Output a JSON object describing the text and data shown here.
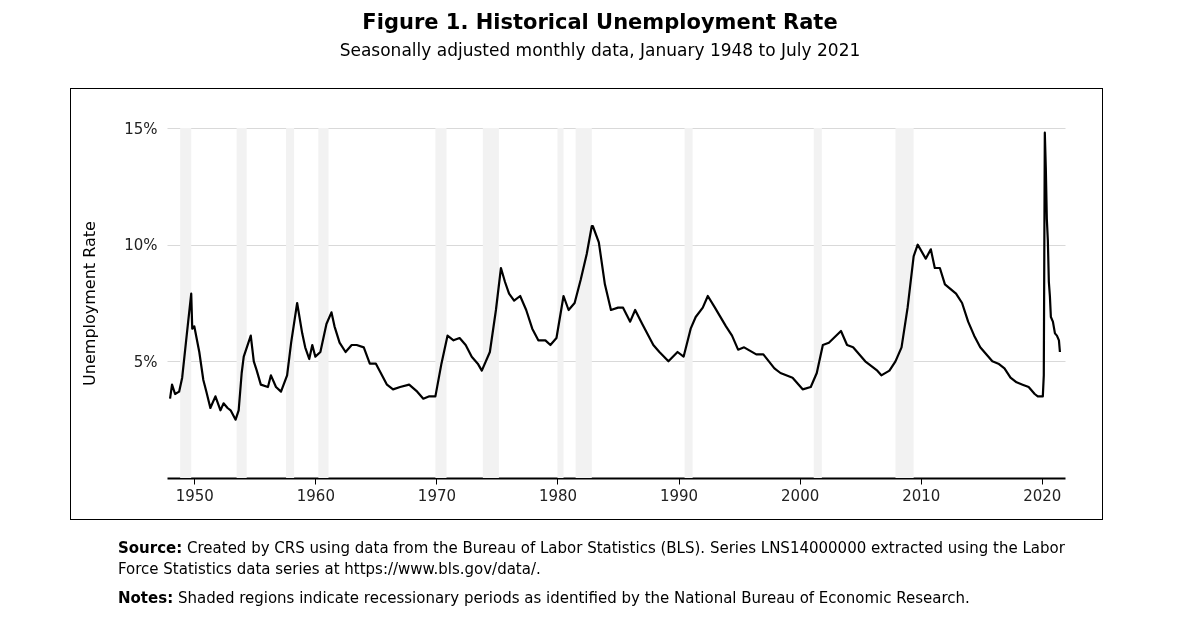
{
  "chart_data": {
    "type": "line",
    "title": "Figure 1. Historical Unemployment Rate",
    "subtitle": "Seasonally adjusted monthly data, January 1948 to July 2021",
    "ylabel": "Unemployment Rate",
    "x": [
      "1948-01",
      "1948-03",
      "1948-06",
      "1948-10",
      "1949-01",
      "1949-05",
      "1949-07",
      "1949-10",
      "1949-11",
      "1950-01",
      "1950-06",
      "1950-10",
      "1951-01",
      "1951-05",
      "1951-10",
      "1952-03",
      "1952-06",
      "1952-10",
      "1953-01",
      "1953-06",
      "1953-09",
      "1953-12",
      "1954-02",
      "1954-09",
      "1954-12",
      "1955-03",
      "1955-07",
      "1956-02",
      "1956-05",
      "1956-10",
      "1957-03",
      "1957-09",
      "1958-01",
      "1958-07",
      "1958-12",
      "1959-03",
      "1959-07",
      "1959-10",
      "1960-01",
      "1960-06",
      "1960-12",
      "1961-05",
      "1961-08",
      "1962-01",
      "1962-07",
      "1963-01",
      "1963-06",
      "1964-01",
      "1964-07",
      "1965-01",
      "1965-12",
      "1966-06",
      "1967-01",
      "1967-10",
      "1968-06",
      "1968-12",
      "1969-06",
      "1969-12",
      "1970-06",
      "1970-12",
      "1971-06",
      "1971-12",
      "1972-06",
      "1972-12",
      "1973-06",
      "1973-10",
      "1974-06",
      "1974-12",
      "1975-05",
      "1975-09",
      "1976-01",
      "1976-06",
      "1976-12",
      "1977-06",
      "1977-12",
      "1978-06",
      "1979-01",
      "1979-06",
      "1979-12",
      "1980-07",
      "1980-12",
      "1981-06",
      "1981-12",
      "1982-06",
      "1982-11",
      "1982-12",
      "1983-06",
      "1983-12",
      "1984-06",
      "1985-01",
      "1985-06",
      "1986-01",
      "1986-06",
      "1987-01",
      "1987-12",
      "1988-06",
      "1989-03",
      "1989-12",
      "1990-06",
      "1991-01",
      "1991-06",
      "1992-01",
      "1992-06",
      "1993-01",
      "1993-12",
      "1994-06",
      "1994-12",
      "1995-06",
      "1996-06",
      "1997-01",
      "1997-12",
      "1998-06",
      "1999-06",
      "2000-04",
      "2000-12",
      "2001-06",
      "2001-12",
      "2002-06",
      "2003-06",
      "2003-12",
      "2004-06",
      "2005-06",
      "2006-06",
      "2006-10",
      "2007-06",
      "2007-12",
      "2008-06",
      "2008-12",
      "2009-06",
      "2009-10",
      "2010-06",
      "2010-11",
      "2011-03",
      "2011-08",
      "2012-01",
      "2012-12",
      "2013-06",
      "2013-12",
      "2014-06",
      "2014-12",
      "2015-06",
      "2015-12",
      "2016-06",
      "2016-12",
      "2017-06",
      "2017-12",
      "2018-06",
      "2018-12",
      "2019-06",
      "2019-09",
      "2020-01",
      "2020-02",
      "2020-03",
      "2020-04",
      "2020-05",
      "2020-06",
      "2020-07",
      "2020-08",
      "2020-09",
      "2020-10",
      "2020-12",
      "2021-02",
      "2021-04",
      "2021-06",
      "2021-07"
    ],
    "series": [
      {
        "color": "#000000",
        "values": [
          3.4,
          4.0,
          3.6,
          3.7,
          4.3,
          5.9,
          6.7,
          7.9,
          6.4,
          6.5,
          5.4,
          4.2,
          3.7,
          3.0,
          3.5,
          2.9,
          3.2,
          3.0,
          2.9,
          2.5,
          2.9,
          4.5,
          5.2,
          6.1,
          5.0,
          4.6,
          4.0,
          3.9,
          4.4,
          3.9,
          3.7,
          4.4,
          5.8,
          7.5,
          6.2,
          5.6,
          5.1,
          5.7,
          5.2,
          5.4,
          6.6,
          7.1,
          6.5,
          5.8,
          5.4,
          5.7,
          5.7,
          5.6,
          4.9,
          4.9,
          4.0,
          3.8,
          3.9,
          4.0,
          3.7,
          3.4,
          3.5,
          3.5,
          4.9,
          6.1,
          5.9,
          6.0,
          5.7,
          5.2,
          4.9,
          4.6,
          5.4,
          7.2,
          9.0,
          8.4,
          7.9,
          7.6,
          7.8,
          7.2,
          6.4,
          5.9,
          5.9,
          5.7,
          6.0,
          7.8,
          7.2,
          7.5,
          8.5,
          9.6,
          10.8,
          10.8,
          10.1,
          8.3,
          7.2,
          7.3,
          7.3,
          6.7,
          7.2,
          6.6,
          5.7,
          5.4,
          5.0,
          5.4,
          5.2,
          6.4,
          6.9,
          7.3,
          7.8,
          7.3,
          6.5,
          6.1,
          5.5,
          5.6,
          5.3,
          5.3,
          4.7,
          4.5,
          4.3,
          3.8,
          3.9,
          4.5,
          5.7,
          5.8,
          6.3,
          5.7,
          5.6,
          5.0,
          4.6,
          4.4,
          4.6,
          5.0,
          5.6,
          7.3,
          9.5,
          10.0,
          9.4,
          9.8,
          9.0,
          9.0,
          8.3,
          7.9,
          7.5,
          6.7,
          6.1,
          5.6,
          5.3,
          5.0,
          4.9,
          4.7,
          4.3,
          4.1,
          4.0,
          3.9,
          3.6,
          3.5,
          3.5,
          3.5,
          4.4,
          14.8,
          13.3,
          11.1,
          10.2,
          8.4,
          7.8,
          6.9,
          6.7,
          6.2,
          6.1,
          5.9,
          5.4
        ]
      }
    ],
    "xlim": [
      "1947-10",
      "2021-12"
    ],
    "xticks": [
      "1950",
      "1960",
      "1970",
      "1980",
      "1990",
      "2000",
      "2010",
      "2020"
    ],
    "ylim": [
      0,
      15
    ],
    "yticks": [
      {
        "value": 5,
        "label": "5%"
      },
      {
        "value": 10,
        "label": "10%"
      },
      {
        "value": 15,
        "label": "15%"
      }
    ],
    "grid": "y",
    "bands": [
      {
        "axis": "x",
        "from": "1948-11",
        "to": "1949-10",
        "color": "#f2f2f2"
      },
      {
        "axis": "x",
        "from": "1953-07",
        "to": "1954-05",
        "color": "#f2f2f2"
      },
      {
        "axis": "x",
        "from": "1957-08",
        "to": "1958-04",
        "color": "#f2f2f2"
      },
      {
        "axis": "x",
        "from": "1960-04",
        "to": "1961-02",
        "color": "#f2f2f2"
      },
      {
        "axis": "x",
        "from": "1969-12",
        "to": "1970-11",
        "color": "#f2f2f2"
      },
      {
        "axis": "x",
        "from": "1973-11",
        "to": "1975-03",
        "color": "#f2f2f2"
      },
      {
        "axis": "x",
        "from": "1980-01",
        "to": "1980-07",
        "color": "#f2f2f2"
      },
      {
        "axis": "x",
        "from": "1981-07",
        "to": "1982-11",
        "color": "#f2f2f2"
      },
      {
        "axis": "x",
        "from": "1990-07",
        "to": "1991-03",
        "color": "#f2f2f2"
      },
      {
        "axis": "x",
        "from": "2001-03",
        "to": "2001-11",
        "color": "#f2f2f2"
      },
      {
        "axis": "x",
        "from": "2007-12",
        "to": "2009-06",
        "color": "#f2f2f2"
      }
    ],
    "annotations": [
      "Source: Created by CRS using data from the Bureau of Labor Statistics (BLS). Series LNS14000000 extracted using the Labor Force Statistics data series at https://www.bls.gov/data/.",
      "Notes: Shaded regions indicate recessionary periods as identified by the National Bureau of Economic Research."
    ]
  }
}
